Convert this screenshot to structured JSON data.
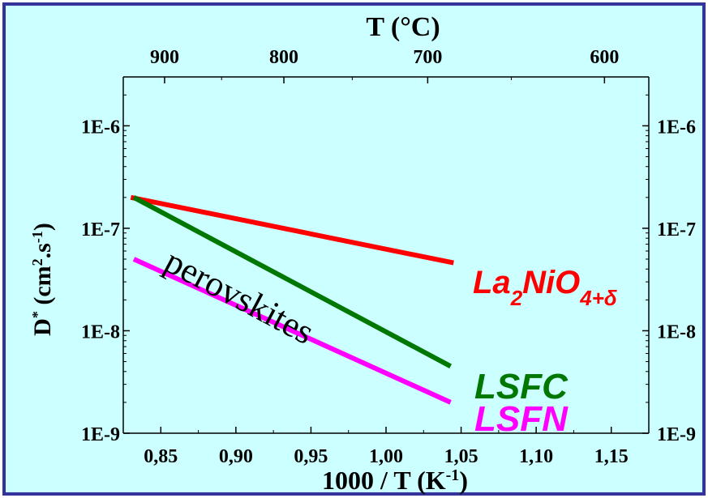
{
  "colors": {
    "background": "#ccffff",
    "frame": "#333399",
    "axis": "#000000"
  },
  "chart_data": {
    "type": "line",
    "y_scale": "log",
    "xlim": [
      0.825,
      1.175
    ],
    "ylim": [
      1e-09,
      3e-06
    ],
    "x_ticks": [
      {
        "value": 0.85,
        "label": "0,85"
      },
      {
        "value": 0.9,
        "label": "0,90"
      },
      {
        "value": 0.95,
        "label": "0,95"
      },
      {
        "value": 1.0,
        "label": "1,00"
      },
      {
        "value": 1.05,
        "label": "1,05"
      },
      {
        "value": 1.1,
        "label": "1,10"
      },
      {
        "value": 1.15,
        "label": "1,15"
      }
    ],
    "y_ticks": [
      {
        "value": 1e-06,
        "label": "1E-6"
      },
      {
        "value": 1e-07,
        "label": "1E-7"
      },
      {
        "value": 1e-08,
        "label": "1E-8"
      },
      {
        "value": 1e-09,
        "label": "1E-9"
      }
    ],
    "top_axis": {
      "label": "T (°C)",
      "ticks": [
        {
          "celsius": 900,
          "label": "900"
        },
        {
          "celsius": 800,
          "label": "800"
        },
        {
          "celsius": 700,
          "label": "700"
        },
        {
          "celsius": 600,
          "label": "600"
        }
      ]
    },
    "xlabel": "1000 / T (K",
    "xlabel_sup": "-1",
    "xlabel_end": ")",
    "ylabel": {
      "base": "D",
      "star": "*",
      "paren": " (cm",
      "sup2": "2",
      "dot": ".s",
      "supm1": "-1",
      "close": ")"
    },
    "series": [
      {
        "label_main": "La",
        "label_sub1": "2",
        "label_mid": "NiO",
        "label_sub2": "4+δ",
        "color": "#ff0000",
        "x": [
          0.83,
          1.045
        ],
        "y": [
          2e-07,
          4.6e-08
        ]
      },
      {
        "label_text": "LSFC",
        "color": "#007700",
        "x": [
          0.832,
          1.043
        ],
        "y": [
          2e-07,
          4.5e-09
        ]
      },
      {
        "label_text": "LSFN",
        "color": "#ff00ff",
        "x": [
          0.832,
          1.043
        ],
        "y": [
          5e-08,
          2e-09
        ]
      }
    ],
    "annotation": "perovskites"
  }
}
